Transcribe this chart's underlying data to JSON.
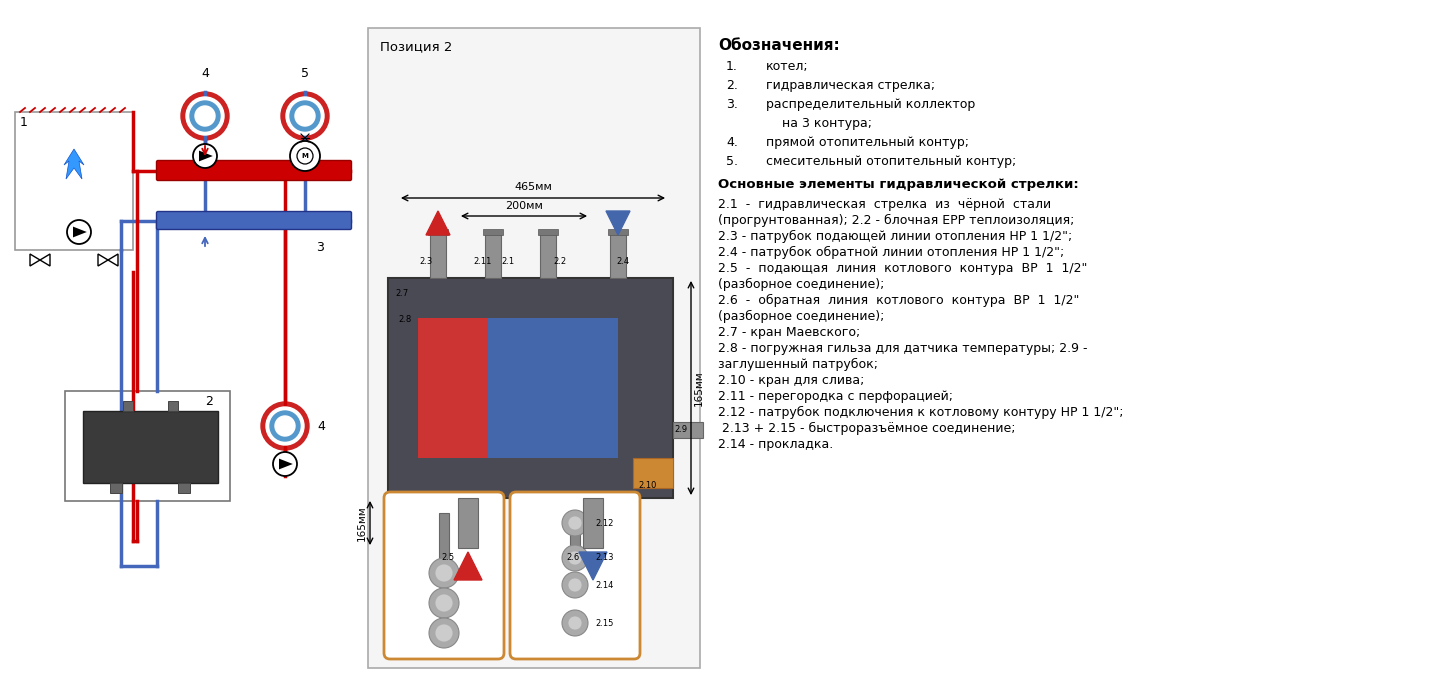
{
  "bg_color": "#ffffff",
  "legend_title": "Обозначения:",
  "legend_items_num": [
    "1.",
    "2.",
    "3.",
    "",
    "4.",
    "5."
  ],
  "legend_items_text": [
    "котел;",
    "гидравлическая стрелка;",
    "распределительный коллектор",
    "на 3 контура;",
    "прямой отопительный контур;",
    "смесительный отопительный контур;"
  ],
  "elements_title": "Основные элементы гидравлической стрелки:",
  "elements_text": [
    "2.1  -  гидравлическая  стрелка  из  чёрной  стали",
    "(прогрунтованная); 2.2 - блочная ЕРР теплоизоляция;",
    "2.3 - патрубок подающей линии отопления НР 1 1/2\";",
    "2.4 - патрубок обратной линии отопления НР 1 1/2\";",
    "2.5  -  подающая  линия  котлового  контура  ВР  1  1/2\"",
    "(разборное соединение);",
    "2.6  -  обратная  линия  котлового  контура  ВР  1  1/2\"",
    "(разборное соединение);",
    "2.7 - кран Маевского;",
    "2.8 - погружная гильза для датчика температуры; 2.9 -",
    "заглушенный патрубок;",
    "2.10 - кран для слива;",
    "2.11 - перегородка с перфорацией;",
    "2.12 - патрубок подключения к котловому контуру НР 1 1/2\";",
    " 2.13 + 2.15 - быстроразъёмное соединение;",
    "2.14 - прокладка."
  ],
  "pozicia_label": "Позиция 2",
  "dim_465": "465мм",
  "dim_200": "200мм",
  "dim_165_v": "165мм",
  "dim_165_h": "165мм"
}
